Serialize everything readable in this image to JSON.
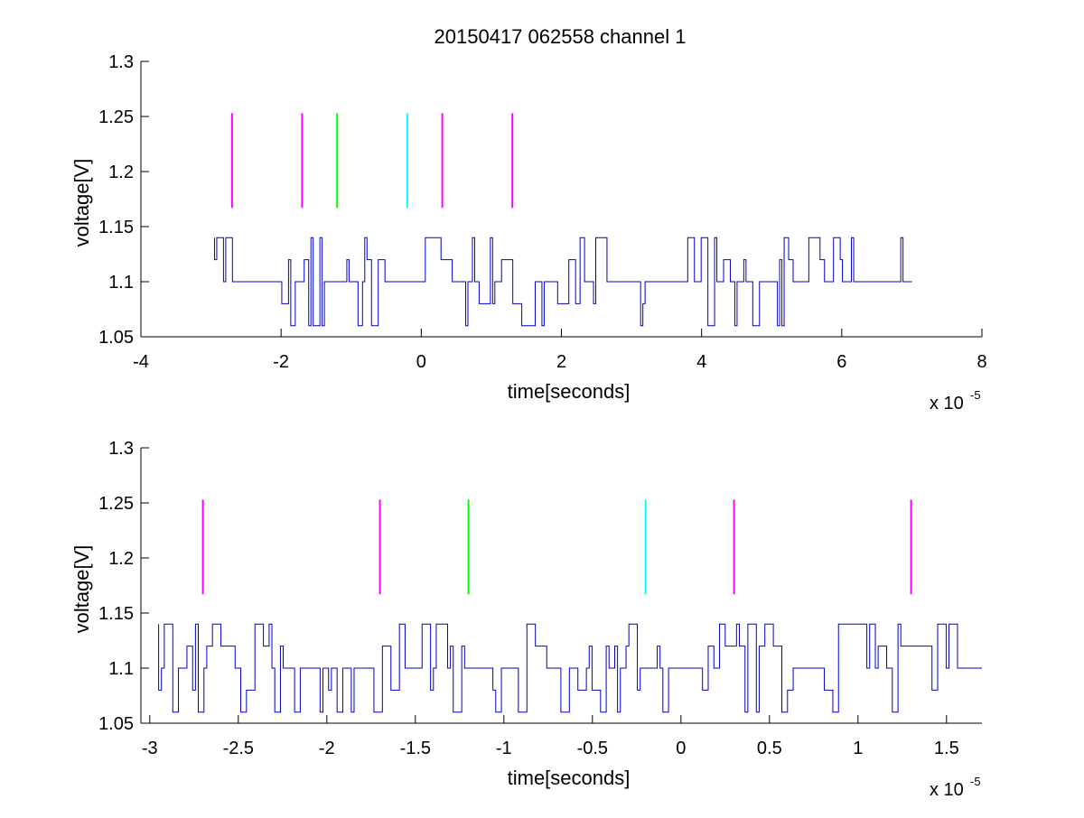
{
  "figure": {
    "title": "20150417 062558 channel 1"
  },
  "colors": {
    "signal": "#0000c8",
    "magenta": "#ff00ff",
    "green": "#00ff00",
    "cyan": "#00ffff",
    "axis": "#000000"
  },
  "chart_data": [
    {
      "type": "line",
      "title": "20150417 062558 channel 1",
      "xlabel": "time[seconds]",
      "ylabel": "voltage[V]",
      "x_scale_label": "x 10",
      "x_scale_exponent": "-5",
      "xlim": [
        -4,
        8
      ],
      "ylim": [
        1.05,
        1.3
      ],
      "x_ticks": [
        "-4",
        "-2",
        "0",
        "2",
        "4",
        "6",
        "8"
      ],
      "y_ticks": [
        "1.05",
        "1.1",
        "1.15",
        "1.2",
        "1.25",
        "1.3"
      ],
      "x_tick_values": [
        -4,
        -2,
        0,
        2,
        4,
        6,
        8
      ],
      "y_tick_values": [
        1.05,
        1.1,
        1.15,
        1.2,
        1.25,
        1.3
      ],
      "grid": false,
      "signal": {
        "x_start": -2.95,
        "x_end": 7.0,
        "levels": [
          1.06,
          1.08,
          1.1,
          1.12,
          1.14
        ],
        "baseline": 1.1
      },
      "markers": [
        {
          "x": -2.7,
          "y_range": [
            1.167,
            1.253
          ],
          "color": "magenta"
        },
        {
          "x": -1.7,
          "y_range": [
            1.167,
            1.253
          ],
          "color": "magenta"
        },
        {
          "x": -1.2,
          "y_range": [
            1.167,
            1.253
          ],
          "color": "green"
        },
        {
          "x": -0.2,
          "y_range": [
            1.167,
            1.253
          ],
          "color": "cyan"
        },
        {
          "x": 0.3,
          "y_range": [
            1.167,
            1.253
          ],
          "color": "magenta"
        },
        {
          "x": 1.3,
          "y_range": [
            1.167,
            1.253
          ],
          "color": "magenta"
        }
      ]
    },
    {
      "type": "line",
      "title": "",
      "xlabel": "time[seconds]",
      "ylabel": "voltage[V]",
      "x_scale_label": "x 10",
      "x_scale_exponent": "-5",
      "xlim": [
        -3.05,
        1.7
      ],
      "ylim": [
        1.05,
        1.3
      ],
      "x_ticks": [
        "-3",
        "-2.5",
        "-2",
        "-1.5",
        "-1",
        "-0.5",
        "0",
        "0.5",
        "1",
        "1.5"
      ],
      "y_ticks": [
        "1.05",
        "1.1",
        "1.15",
        "1.2",
        "1.25",
        "1.3"
      ],
      "x_tick_values": [
        -3,
        -2.5,
        -2,
        -1.5,
        -1,
        -0.5,
        0,
        0.5,
        1,
        1.5
      ],
      "y_tick_values": [
        1.05,
        1.1,
        1.15,
        1.2,
        1.25,
        1.3
      ],
      "grid": false,
      "signal": {
        "x_start": -2.95,
        "x_end": 1.7,
        "levels": [
          1.06,
          1.08,
          1.1,
          1.12,
          1.14
        ],
        "baseline": 1.1
      },
      "markers": [
        {
          "x": -2.7,
          "y_range": [
            1.167,
            1.253
          ],
          "color": "magenta"
        },
        {
          "x": -1.7,
          "y_range": [
            1.167,
            1.253
          ],
          "color": "magenta"
        },
        {
          "x": -1.2,
          "y_range": [
            1.167,
            1.253
          ],
          "color": "green"
        },
        {
          "x": -0.2,
          "y_range": [
            1.167,
            1.253
          ],
          "color": "cyan"
        },
        {
          "x": 0.3,
          "y_range": [
            1.167,
            1.253
          ],
          "color": "magenta"
        },
        {
          "x": 1.3,
          "y_range": [
            1.167,
            1.253
          ],
          "color": "magenta"
        }
      ]
    }
  ]
}
